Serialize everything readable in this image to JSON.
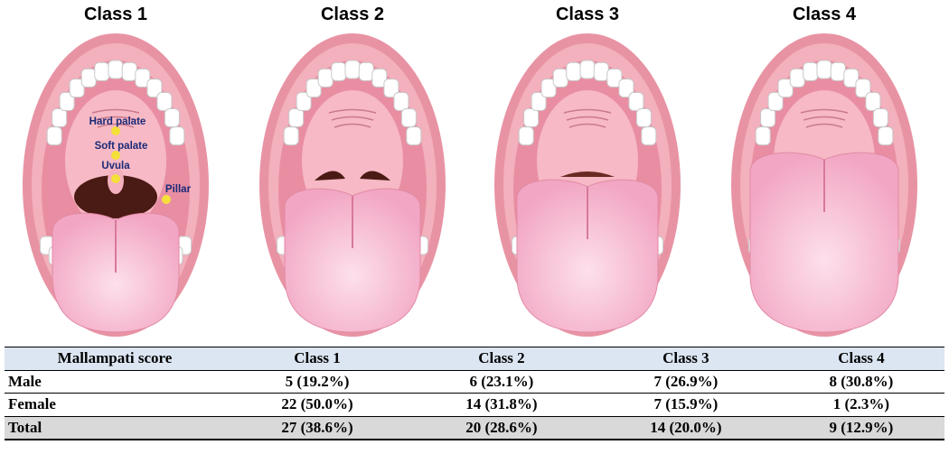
{
  "panels": [
    {
      "title": "Class 1",
      "labels": [
        "Hard palate",
        "Soft palate",
        "Uvula",
        "Pillar"
      ]
    },
    {
      "title": "Class 2"
    },
    {
      "title": "Class 3"
    },
    {
      "title": "Class 4"
    }
  ],
  "table": {
    "header": [
      "Mallampati score",
      "Class 1",
      "Class 2",
      "Class 3",
      "Class 4"
    ],
    "rows": [
      [
        "Male",
        "5 (19.2%)",
        "6 (23.1%)",
        "7 (26.9%)",
        "8 (30.8%)"
      ],
      [
        "Female",
        "22 (50.0%)",
        "14 (31.8%)",
        "7 (15.9%)",
        "1 (2.3%)"
      ],
      [
        "Total",
        "27 (38.6%)",
        "20 (28.6%)",
        "14 (20.0%)",
        "9 (12.9%)"
      ]
    ]
  }
}
